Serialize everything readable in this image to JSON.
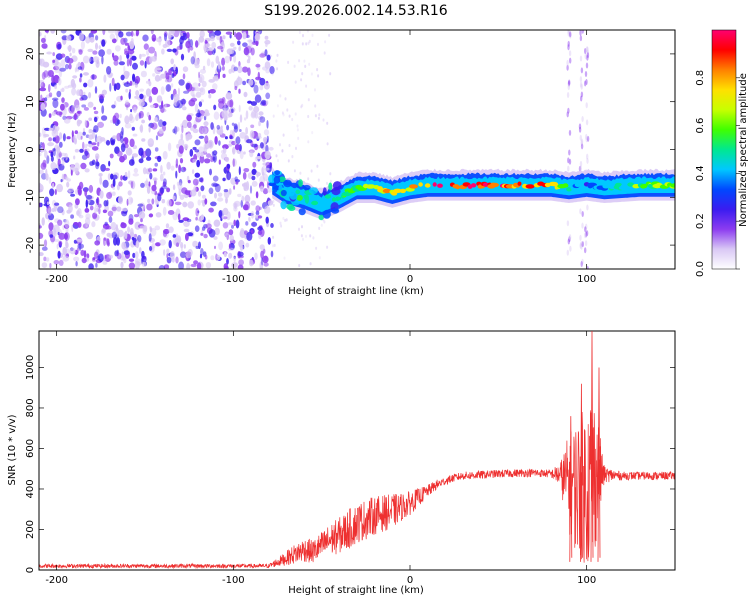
{
  "figure_title": "S199.2026.002.14.53.R16",
  "chart_data": [
    {
      "type": "heatmap",
      "name": "spectrogram",
      "xlabel": "Height of straight line (km)",
      "ylabel": "Frequency (Hz)",
      "xlim": [
        -210,
        150
      ],
      "ylim": [
        -25,
        25
      ],
      "xticks": [
        -200,
        -100,
        0,
        100
      ],
      "yticks": [
        20,
        10,
        0,
        -10,
        -20
      ],
      "colorbar": {
        "label": "Normalized spectral amplitude",
        "range": [
          0.0,
          1.0
        ],
        "ticks": [
          0.0,
          0.2,
          0.4,
          0.6,
          0.8
        ],
        "tick_labels": [
          "0.0",
          "0.2",
          "0.4",
          "0.6",
          "0.8"
        ],
        "colormap": [
          "#ffffff",
          "#d9c8f5",
          "#8c3cf0",
          "#3a1cf0",
          "#0048ff",
          "#00c8ff",
          "#00e890",
          "#40ff00",
          "#c8ff00",
          "#ffe000",
          "#ff8000",
          "#ff0000",
          "#ff0070"
        ]
      },
      "noise_region_x": [
        -210,
        -78
      ],
      "main_ridge": {
        "x": [
          -78,
          -70,
          -60,
          -50,
          -40,
          -30,
          -20,
          -10,
          0,
          10,
          20,
          40,
          60,
          80,
          90,
          100,
          110,
          130,
          150
        ],
        "freq": [
          -7,
          -9,
          -10,
          -11.5,
          -10,
          -8,
          -8,
          -9,
          -8,
          -7.5,
          -7.5,
          -7.5,
          -7.5,
          -7.5,
          -8,
          -7.5,
          -8,
          -7.5,
          -7.5
        ],
        "amplitude": [
          0.35,
          0.4,
          0.4,
          0.45,
          0.5,
          0.6,
          0.7,
          0.8,
          0.75,
          0.9,
          0.95,
          0.98,
          0.95,
          0.85,
          0.5,
          0.3,
          0.4,
          0.6,
          0.65
        ]
      },
      "vertical_streaks_x": [
        90,
        97,
        100
      ]
    },
    {
      "type": "line",
      "name": "snr",
      "xlabel": "Height of straight line (km)",
      "ylabel": "SNR (10 * v/v)",
      "xlim": [
        -210,
        150
      ],
      "ylim": [
        0,
        1180
      ],
      "xticks": [
        -200,
        -100,
        0,
        100
      ],
      "yticks": [
        0,
        200,
        400,
        600,
        800,
        1000
      ],
      "color": "#ee3030",
      "envelope": {
        "x": [
          -210,
          -80,
          -72,
          -65,
          -60,
          -55,
          -50,
          -45,
          -40,
          -35,
          -30,
          -25,
          -20,
          -15,
          -10,
          -5,
          0,
          5,
          10,
          15,
          20,
          25,
          30,
          40,
          50,
          60,
          70,
          80,
          85,
          90,
          95,
          100,
          103,
          106,
          110,
          120,
          130,
          150
        ],
        "mean": [
          20,
          20,
          50,
          80,
          100,
          90,
          120,
          150,
          170,
          200,
          230,
          250,
          270,
          280,
          290,
          310,
          330,
          360,
          390,
          420,
          440,
          455,
          465,
          470,
          475,
          478,
          480,
          475,
          470,
          430,
          410,
          420,
          450,
          480,
          470,
          465,
          465,
          465
        ],
        "spread": [
          10,
          10,
          30,
          50,
          60,
          60,
          70,
          80,
          90,
          100,
          100,
          100,
          95,
          90,
          85,
          70,
          60,
          45,
          30,
          25,
          20,
          20,
          20,
          20,
          20,
          20,
          20,
          20,
          60,
          250,
          350,
          400,
          500,
          300,
          40,
          20,
          20,
          20
        ],
        "peaks": [
          {
            "x": 103,
            "y": 1180
          },
          {
            "x": 107,
            "y": 1000
          },
          {
            "x": 97,
            "y": 920
          },
          {
            "x": 91,
            "y": 760
          }
        ]
      }
    }
  ]
}
